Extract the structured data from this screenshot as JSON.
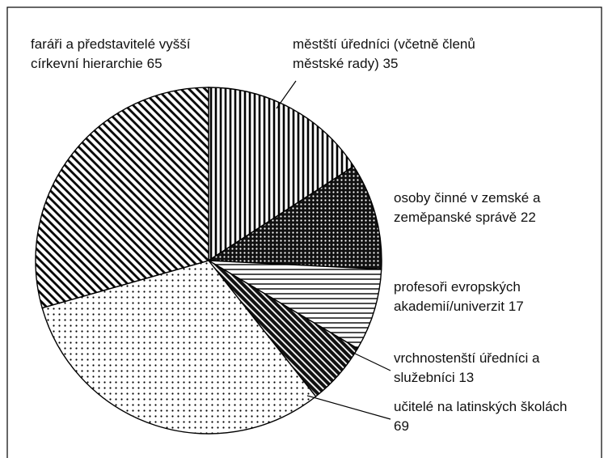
{
  "chart_data": {
    "type": "pie",
    "categories": [
      "městští úředníci (včetně členů městské rady)",
      "osoby činné v zemské a zeměpanské správě",
      "profesoři evropských akademií/univerzit",
      "vrchnostenští úředníci a služebníci",
      "učitelé na latinských školách",
      "faráři a představitelé vyšší církevní hierarchie"
    ],
    "values": [
      35,
      22,
      17,
      13,
      69,
      65
    ]
  }
}
